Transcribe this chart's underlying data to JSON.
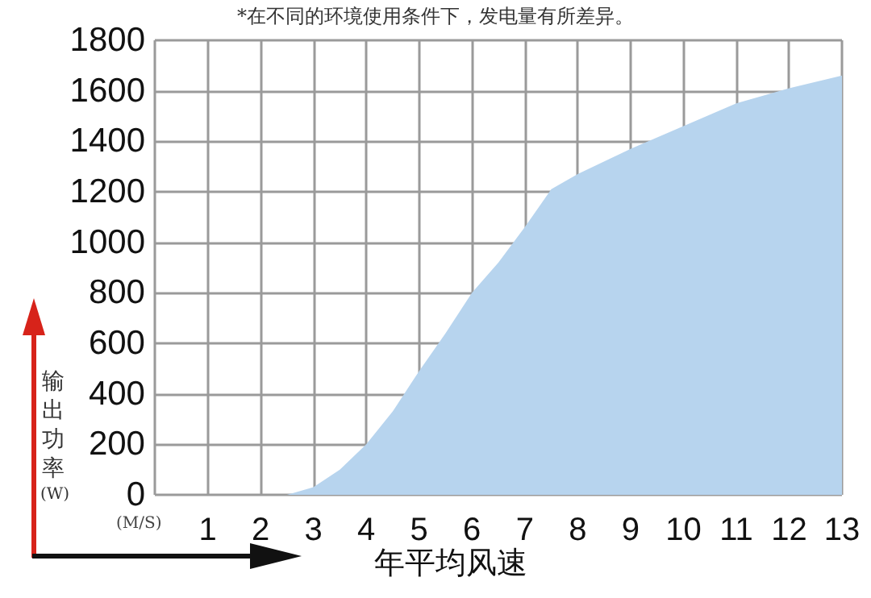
{
  "chart_data": {
    "type": "area",
    "xlabel": "年平均风速",
    "ylabel": "输出功率(W)",
    "annotations": [
      "*在不同的环境使用条件下，发电量有所差异。",
      "(M/S)"
    ],
    "x": [
      2.5,
      3,
      3.5,
      4,
      4.5,
      5,
      5.5,
      6,
      6.5,
      7,
      7.5,
      8,
      9,
      10,
      11,
      12,
      13
    ],
    "series": [
      {
        "color": "#b7d4ee",
        "values": [
          0,
          30,
          100,
          200,
          330,
          490,
          640,
          800,
          920,
          1060,
          1210,
          1270,
          1370,
          1460,
          1550,
          1610,
          1660
        ]
      }
    ],
    "xlim": [
      0,
      13
    ],
    "xticks": [
      {
        "value": 0,
        "label": null
      },
      1,
      2,
      3,
      4,
      5,
      6,
      7,
      8,
      9,
      10,
      11,
      12,
      13
    ],
    "ylim": [
      0,
      1800
    ],
    "yticks": [
      0,
      200,
      400,
      600,
      800,
      1000,
      1200,
      1400,
      1600,
      1800
    ],
    "grid": true,
    "marker": "none"
  }
}
